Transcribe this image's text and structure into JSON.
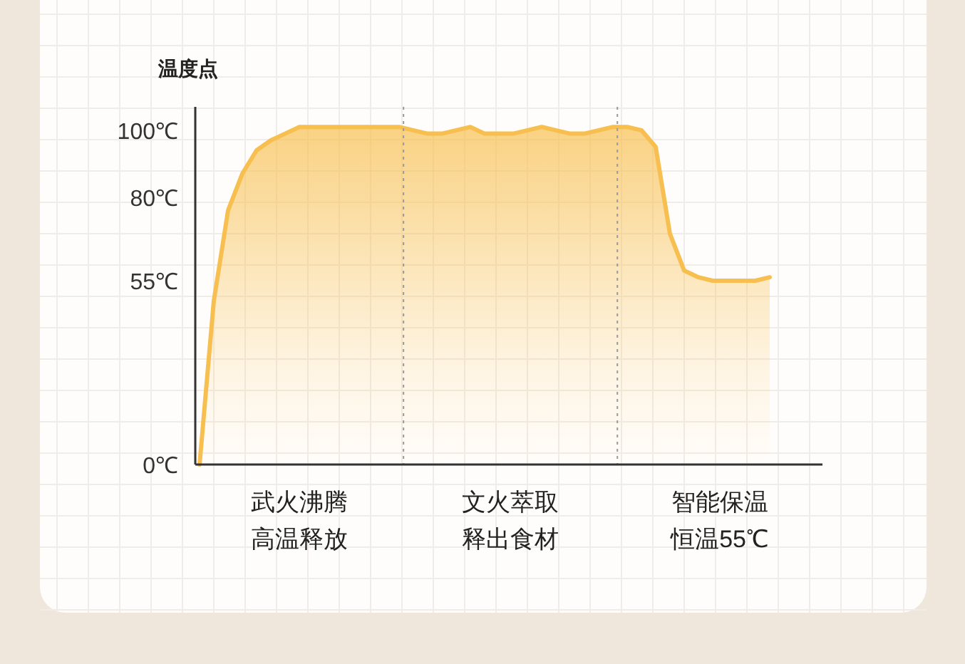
{
  "chart_data": {
    "type": "line",
    "ylabel": "温度点",
    "categories": [
      null,
      null,
      null,
      null,
      null,
      null,
      null,
      null,
      null,
      null,
      null,
      null,
      null,
      null,
      null,
      null,
      null,
      null,
      null,
      null,
      null,
      null,
      null,
      null,
      null,
      null,
      null,
      null,
      null,
      null,
      null,
      null,
      null,
      null,
      null,
      null,
      null,
      null,
      null,
      null,
      null
    ],
    "series": [
      {
        "color": "#f7bf4f",
        "values": [
          0,
          49,
          76,
          87,
          94,
          97,
          99,
          101,
          101,
          101,
          101,
          101,
          101,
          101,
          101,
          100,
          99,
          99,
          100,
          101,
          99,
          99,
          99,
          100,
          101,
          100,
          99,
          99,
          100,
          101,
          101,
          100,
          95,
          69,
          58,
          56,
          55,
          55,
          55,
          55,
          56
        ]
      }
    ],
    "ylim": [
      0,
      107
    ],
    "yticks": [
      {
        "value": 0,
        "label": "0℃"
      },
      {
        "value": 55,
        "label": "55℃"
      },
      {
        "value": 80,
        "label": "80℃"
      },
      {
        "value": 100,
        "label": "100℃"
      }
    ],
    "tick_labels": "y",
    "grid": true,
    "annotations": [
      "武火沸腾高温释放",
      "文火萃取释出食材",
      "智能保温恒温55℃"
    ]
  }
}
